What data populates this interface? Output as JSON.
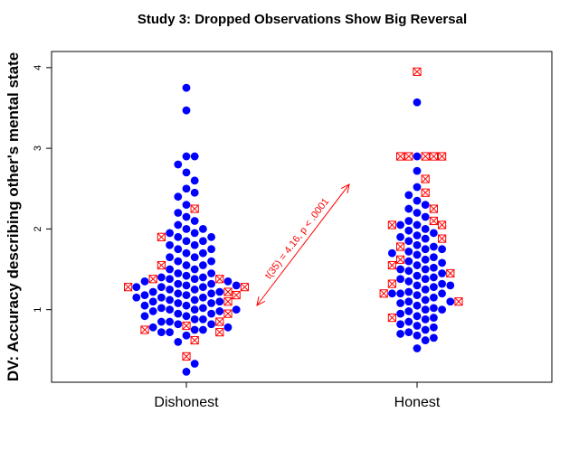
{
  "chart_data": {
    "type": "scatter",
    "subtype": "beeswarm",
    "title": "Study 3: Dropped Observations Show Big Reversal",
    "xlabel": "",
    "ylabel": "DV: Accuracy describing other's mental state",
    "categories": [
      "Dishonest",
      "Honest"
    ],
    "ylim": [
      0.1,
      4.2
    ],
    "yticks": [
      "1",
      "2",
      "3",
      "4"
    ],
    "colors": {
      "kept": "#0000ff",
      "dropped": "#ff0000"
    },
    "annotation": "t(35) = 4.16, p < .0001",
    "series": [
      {
        "name": "kept",
        "marker": "filled-circle",
        "groups": {
          "Dishonest": [
            0.23,
            0.33,
            0.6,
            0.68,
            0.72,
            0.72,
            0.75,
            0.75,
            0.78,
            0.78,
            0.82,
            0.82,
            0.85,
            0.85,
            0.88,
            0.88,
            0.92,
            0.92,
            0.95,
            0.95,
            0.98,
            0.98,
            1.0,
            1.0,
            1.0,
            1.02,
            1.02,
            1.05,
            1.05,
            1.08,
            1.08,
            1.1,
            1.1,
            1.12,
            1.12,
            1.15,
            1.15,
            1.15,
            1.18,
            1.18,
            1.2,
            1.2,
            1.22,
            1.22,
            1.25,
            1.25,
            1.28,
            1.28,
            1.28,
            1.3,
            1.3,
            1.32,
            1.32,
            1.35,
            1.35,
            1.38,
            1.38,
            1.4,
            1.4,
            1.42,
            1.45,
            1.45,
            1.5,
            1.5,
            1.55,
            1.55,
            1.6,
            1.6,
            1.65,
            1.65,
            1.7,
            1.7,
            1.75,
            1.75,
            1.8,
            1.8,
            1.85,
            1.85,
            1.9,
            1.9,
            1.95,
            1.95,
            2.0,
            2.0,
            2.05,
            2.1,
            2.15,
            2.2,
            2.3,
            2.4,
            2.45,
            2.5,
            2.6,
            2.7,
            2.8,
            2.9,
            2.9,
            3.47,
            3.75
          ],
          "Honest": [
            0.52,
            0.62,
            0.65,
            0.68,
            0.7,
            0.72,
            0.75,
            0.78,
            0.8,
            0.82,
            0.85,
            0.88,
            0.9,
            0.92,
            0.95,
            0.98,
            1.0,
            1.0,
            1.02,
            1.05,
            1.08,
            1.1,
            1.1,
            1.12,
            1.15,
            1.18,
            1.2,
            1.2,
            1.2,
            1.22,
            1.25,
            1.28,
            1.3,
            1.3,
            1.32,
            1.35,
            1.38,
            1.38,
            1.4,
            1.42,
            1.45,
            1.48,
            1.5,
            1.5,
            1.52,
            1.55,
            1.58,
            1.6,
            1.62,
            1.65,
            1.68,
            1.7,
            1.72,
            1.75,
            1.75,
            1.78,
            1.8,
            1.85,
            1.88,
            1.9,
            1.92,
            1.95,
            1.98,
            2.0,
            2.05,
            2.05,
            2.1,
            2.15,
            2.2,
            2.25,
            2.3,
            2.35,
            2.42,
            2.52,
            2.72,
            2.9,
            3.57
          ]
        }
      },
      {
        "name": "dropped",
        "marker": "crossed-square",
        "groups": {
          "Dishonest": [
            0.42,
            0.62,
            0.72,
            0.75,
            0.8,
            0.85,
            0.95,
            1.1,
            1.18,
            1.22,
            1.28,
            1.28,
            1.38,
            1.38,
            1.55,
            1.9,
            2.25
          ],
          "Honest": [
            0.9,
            1.1,
            1.2,
            1.32,
            1.45,
            1.55,
            1.62,
            1.78,
            1.88,
            2.05,
            2.05,
            2.1,
            2.25,
            2.45,
            2.62,
            2.9,
            2.9,
            2.9,
            2.9,
            2.9,
            3.95
          ]
        }
      }
    ]
  }
}
